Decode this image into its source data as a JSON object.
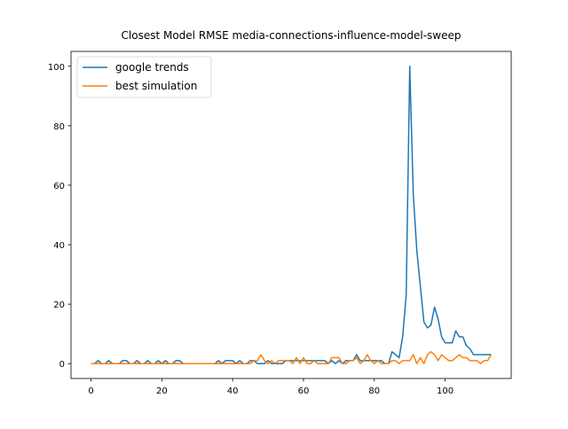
{
  "chart_data": {
    "type": "line",
    "title": "Closest Model RMSE media-connections-influence-model-sweep",
    "x": [
      0,
      1,
      2,
      3,
      4,
      5,
      6,
      7,
      8,
      9,
      10,
      11,
      12,
      13,
      14,
      15,
      16,
      17,
      18,
      19,
      20,
      21,
      22,
      23,
      24,
      25,
      26,
      27,
      28,
      29,
      30,
      31,
      32,
      33,
      34,
      35,
      36,
      37,
      38,
      39,
      40,
      41,
      42,
      43,
      44,
      45,
      46,
      47,
      48,
      49,
      50,
      51,
      52,
      53,
      54,
      55,
      56,
      57,
      58,
      59,
      60,
      61,
      62,
      63,
      64,
      65,
      66,
      67,
      68,
      69,
      70,
      71,
      72,
      73,
      74,
      75,
      76,
      77,
      78,
      79,
      80,
      81,
      82,
      83,
      84,
      85,
      86,
      87,
      88,
      89,
      90,
      91,
      92,
      93,
      94,
      95,
      96,
      97,
      98,
      99,
      100,
      101,
      102,
      103,
      104,
      105,
      106,
      107,
      108,
      109,
      110,
      111,
      112,
      113
    ],
    "series": [
      {
        "name": "google trends",
        "color": "#1f77b4",
        "values": [
          0,
          0,
          1,
          0,
          0,
          1,
          0,
          0,
          0,
          1,
          1,
          0,
          0,
          1,
          0,
          0,
          1,
          0,
          0,
          1,
          0,
          1,
          0,
          0,
          1,
          1,
          0,
          0,
          0,
          0,
          0,
          0,
          0,
          0,
          0,
          0,
          1,
          0,
          1,
          1,
          1,
          0,
          1,
          0,
          0,
          1,
          1,
          0,
          0,
          0,
          1,
          0,
          0,
          0,
          0,
          1,
          1,
          1,
          1,
          1,
          1,
          1,
          1,
          1,
          1,
          1,
          1,
          0,
          1,
          0,
          1,
          0,
          1,
          1,
          1,
          3,
          1,
          1,
          1,
          1,
          1,
          1,
          1,
          0,
          0,
          4,
          3,
          2,
          9,
          23,
          100,
          57,
          38,
          26,
          14,
          12,
          13,
          19,
          15,
          9,
          7,
          7,
          7,
          11,
          9,
          9,
          6,
          5,
          3,
          3,
          3,
          3,
          3,
          3
        ]
      },
      {
        "name": "best simulation",
        "color": "#ff7f0e",
        "values": [
          0,
          0,
          0,
          0,
          0,
          0,
          0,
          0,
          0,
          0,
          0,
          0,
          0,
          0,
          0,
          0,
          0,
          0,
          0,
          0,
          0,
          0,
          0,
          0,
          0,
          0,
          0,
          0,
          0,
          0,
          0,
          0,
          0,
          0,
          0,
          0,
          0,
          0,
          0,
          0,
          0,
          0,
          0,
          0,
          0,
          0,
          1,
          1,
          3,
          1,
          0,
          1,
          0,
          1,
          1,
          1,
          1,
          0,
          2,
          0,
          2,
          0,
          0,
          1,
          0,
          0,
          0,
          0,
          2,
          2,
          2,
          0,
          0,
          1,
          1,
          2,
          0,
          1,
          3,
          1,
          0,
          1,
          0,
          0,
          0,
          1,
          1,
          0,
          1,
          1,
          1,
          3,
          0,
          2,
          0,
          3,
          4,
          3,
          1,
          3,
          2,
          1,
          1,
          2,
          3,
          2,
          2,
          1,
          1,
          1,
          0,
          1,
          1,
          3
        ]
      }
    ],
    "xlim": [
      -5.65,
      118.65
    ],
    "ylim": [
      -5,
      105
    ],
    "xticks": [
      0,
      20,
      40,
      60,
      80,
      100
    ],
    "yticks": [
      0,
      20,
      40,
      60,
      80,
      100
    ],
    "legend": "upper left"
  }
}
